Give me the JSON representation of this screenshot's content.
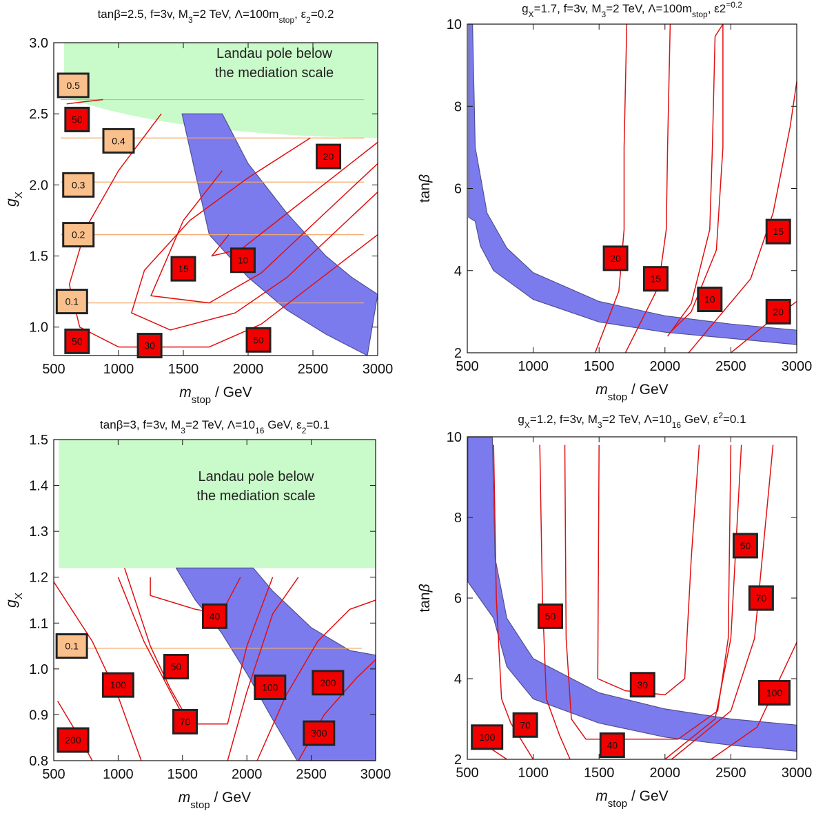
{
  "chart_data": [
    {
      "type": "contour",
      "title_parts": [
        "tanβ=2.5, f=3v, M",
        "3",
        "=2 TeV, Λ=100m",
        "stop",
        ", ε",
        "2",
        "=0.2"
      ],
      "xlabel": "m_stop / GeV",
      "ylabel": "g_X",
      "xlim": [
        500,
        3000
      ],
      "ylim": [
        0.8,
        3.0
      ],
      "x_ticks": [
        500,
        1000,
        1500,
        2000,
        2500,
        3000
      ],
      "y_ticks": [
        1.0,
        1.5,
        2.0,
        2.5,
        3.0
      ],
      "y_tick_labels": [
        "1.0",
        "1.5",
        "2.0",
        "2.5",
        "3.0"
      ],
      "landau_region": {
        "ybot_left": 2.62,
        "ybot_right": 2.33,
        "ytop": 3.0,
        "label": [
          "Landau pole below",
          "the mediation scale"
        ]
      },
      "band": {
        "outer": [
          [
            1490,
            2.5
          ],
          [
            1800,
            2.5
          ],
          [
            2000,
            2.15
          ],
          [
            2300,
            1.8
          ],
          [
            2600,
            1.5
          ],
          [
            2800,
            1.35
          ],
          [
            3000,
            1.23
          ]
        ],
        "inner": [
          [
            2920,
            0.8
          ],
          [
            2600,
            0.95
          ],
          [
            2300,
            1.12
          ],
          [
            2000,
            1.35
          ],
          [
            1700,
            1.65
          ],
          [
            1490,
            2.5
          ]
        ]
      },
      "hlines": [
        1.17,
        1.65,
        2.02,
        2.33,
        2.6
      ],
      "contours": [
        [
          [
            1330,
            2.5
          ],
          [
            1000,
            2.1
          ],
          [
            750,
            1.7
          ],
          [
            620,
            1.3
          ],
          [
            700,
            1.0
          ],
          [
            1000,
            0.86
          ],
          [
            1700,
            0.86
          ],
          [
            2100,
            1.02
          ],
          [
            2500,
            1.3
          ],
          [
            3000,
            1.65
          ]
        ],
        [
          [
            2480,
            2.33
          ],
          [
            2000,
            2.05
          ],
          [
            1550,
            1.75
          ],
          [
            1200,
            1.4
          ],
          [
            1100,
            1.1
          ],
          [
            1400,
            0.98
          ],
          [
            1900,
            1.1
          ],
          [
            2300,
            1.35
          ],
          [
            3000,
            1.95
          ]
        ],
        [
          [
            1800,
            2.1
          ],
          [
            1500,
            1.75
          ],
          [
            1250,
            1.22
          ],
          [
            1700,
            1.17
          ],
          [
            2100,
            1.38
          ],
          [
            3000,
            2.15
          ]
        ],
        [
          [
            1850,
            1.65
          ],
          [
            1720,
            1.5
          ],
          [
            1950,
            1.55
          ],
          [
            3000,
            2.3
          ]
        ],
        [
          [
            600,
            2.57
          ],
          [
            880,
            2.6
          ]
        ]
      ],
      "contour_labels": [
        {
          "text": "0.5",
          "x": 650,
          "y": 2.7,
          "kind": "orange"
        },
        {
          "text": "50",
          "x": 680,
          "y": 2.46,
          "kind": "red"
        },
        {
          "text": "0.4",
          "x": 1000,
          "y": 2.31,
          "kind": "orange"
        },
        {
          "text": "0.3",
          "x": 690,
          "y": 2.0,
          "kind": "orange"
        },
        {
          "text": "0.2",
          "x": 690,
          "y": 1.65,
          "kind": "orange"
        },
        {
          "text": "0.1",
          "x": 640,
          "y": 1.18,
          "kind": "orange"
        },
        {
          "text": "20",
          "x": 2620,
          "y": 2.2,
          "kind": "red"
        },
        {
          "text": "10",
          "x": 1960,
          "y": 1.47,
          "kind": "red"
        },
        {
          "text": "15",
          "x": 1500,
          "y": 1.41,
          "kind": "red"
        },
        {
          "text": "50",
          "x": 680,
          "y": 0.9,
          "kind": "red"
        },
        {
          "text": "30",
          "x": 1240,
          "y": 0.87,
          "kind": "red"
        },
        {
          "text": "50",
          "x": 2080,
          "y": 0.91,
          "kind": "red"
        }
      ]
    },
    {
      "type": "contour",
      "title_parts": [
        "g",
        "X",
        "=1.7, f=3v, M",
        "3",
        "=2 TeV, Λ=100m",
        "stop",
        ", ε",
        "2",
        "=0.2"
      ],
      "xlabel": "m_stop / GeV",
      "ylabel": "tanβ",
      "xlim": [
        500,
        3000
      ],
      "ylim": [
        2,
        10
      ],
      "x_ticks": [
        500,
        1000,
        1500,
        2000,
        2500,
        3000
      ],
      "y_ticks": [
        2,
        4,
        6,
        8,
        10
      ],
      "y_tick_labels": [
        "2",
        "4",
        "6",
        "8",
        "10"
      ],
      "band": {
        "outer": [
          [
            540,
            10
          ],
          [
            560,
            7
          ],
          [
            650,
            5.4
          ],
          [
            800,
            4.55
          ],
          [
            1000,
            3.95
          ],
          [
            1500,
            3.25
          ],
          [
            2000,
            2.9
          ],
          [
            2500,
            2.7
          ],
          [
            3000,
            2.55
          ]
        ],
        "inner": [
          [
            3000,
            2.2
          ],
          [
            2500,
            2.35
          ],
          [
            2000,
            2.5
          ],
          [
            1500,
            2.75
          ],
          [
            1000,
            3.3
          ],
          [
            700,
            4.0
          ],
          [
            600,
            4.6
          ],
          [
            560,
            5.2
          ],
          [
            510,
            5.3
          ],
          [
            510,
            10
          ]
        ]
      },
      "contours": [
        [
          [
            1470,
            2.0
          ],
          [
            1650,
            3.5
          ],
          [
            1690,
            5
          ],
          [
            1690,
            7
          ],
          [
            1710,
            10
          ]
        ],
        [
          [
            1700,
            2.0
          ],
          [
            1950,
            3.6
          ],
          [
            2010,
            5
          ],
          [
            2020,
            7
          ],
          [
            2040,
            10
          ]
        ],
        [
          [
            2020,
            2.4
          ],
          [
            2200,
            3.2
          ],
          [
            2340,
            5
          ],
          [
            2360,
            7
          ],
          [
            2380,
            9.7
          ],
          [
            2440,
            10
          ],
          [
            2440,
            7
          ],
          [
            2390,
            4.5
          ],
          [
            2200,
            3.0
          ],
          [
            2040,
            2.5
          ]
        ],
        [
          [
            2180,
            2.0
          ],
          [
            2650,
            3.8
          ],
          [
            2820,
            5.4
          ],
          [
            2950,
            7.5
          ],
          [
            3000,
            8.6
          ]
        ],
        [
          [
            2500,
            2.0
          ],
          [
            2750,
            2.65
          ],
          [
            3000,
            3.25
          ]
        ]
      ],
      "contour_labels": [
        {
          "text": "20",
          "x": 1625,
          "y": 4.3,
          "kind": "red"
        },
        {
          "text": "15",
          "x": 1930,
          "y": 3.8,
          "kind": "red"
        },
        {
          "text": "10",
          "x": 2340,
          "y": 3.3,
          "kind": "red"
        },
        {
          "text": "15",
          "x": 2860,
          "y": 4.95,
          "kind": "red"
        },
        {
          "text": "20",
          "x": 2860,
          "y": 3.0,
          "kind": "red"
        }
      ]
    },
    {
      "type": "contour",
      "title_parts": [
        "tanβ=3, f=3v, M",
        "3",
        "=2 TeV, Λ=10",
        "16",
        " GeV, ε",
        "2",
        "=0.1"
      ],
      "xlabel": "m_stop / GeV",
      "ylabel": "g_X",
      "xlim": [
        500,
        3000
      ],
      "ylim": [
        0.8,
        1.5
      ],
      "x_ticks": [
        500,
        1000,
        1500,
        2000,
        2500,
        3000
      ],
      "y_ticks": [
        0.8,
        0.9,
        1.0,
        1.1,
        1.2,
        1.3,
        1.4,
        1.5
      ],
      "y_tick_labels": [
        "0.8",
        "0.9",
        "1.0",
        "1.1",
        "1.2",
        "1.3",
        "1.4",
        "1.5"
      ],
      "landau_region": {
        "ybot_left": 1.22,
        "ybot_right": 1.22,
        "ytop": 1.5,
        "label": [
          "Landau pole below",
          "the mediation scale"
        ]
      },
      "band": {
        "outer": [
          [
            1450,
            1.22
          ],
          [
            2050,
            1.22
          ],
          [
            2200,
            1.17
          ],
          [
            2500,
            1.09
          ],
          [
            2800,
            1.04
          ],
          [
            3000,
            1.03
          ]
        ],
        "inner": [
          [
            3000,
            0.8
          ],
          [
            2390,
            0.8
          ],
          [
            2200,
            0.89
          ],
          [
            2000,
            0.99
          ],
          [
            1800,
            1.08
          ],
          [
            1600,
            1.15
          ],
          [
            1450,
            1.22
          ]
        ]
      },
      "hlines": [
        1.045
      ],
      "contours": [
        [
          [
            500,
            1.19
          ],
          [
            800,
            1.06
          ],
          [
            1000,
            0.94
          ],
          [
            1180,
            0.8
          ]
        ],
        [
          [
            1000,
            1.2
          ],
          [
            1200,
            1.06
          ],
          [
            1500,
            0.9
          ],
          [
            1550,
            0.88
          ],
          [
            1850,
            0.88
          ],
          [
            2000,
            1.05
          ],
          [
            2200,
            1.2
          ]
        ],
        [
          [
            1250,
            1.2
          ],
          [
            1250,
            1.16
          ],
          [
            1600,
            1.13
          ],
          [
            1800,
            1.12
          ],
          [
            1950,
            1.2
          ]
        ],
        [
          [
            1850,
            0.8
          ],
          [
            2000,
            0.95
          ],
          [
            2200,
            1.12
          ],
          [
            2400,
            1.2
          ]
        ],
        [
          [
            2080,
            0.8
          ],
          [
            2300,
            0.94
          ],
          [
            2550,
            1.06
          ],
          [
            2800,
            1.13
          ],
          [
            3000,
            1.15
          ]
        ],
        [
          [
            2400,
            0.8
          ],
          [
            2600,
            0.9
          ],
          [
            2850,
            0.98
          ],
          [
            3000,
            1.02
          ]
        ],
        [
          [
            530,
            0.93
          ],
          [
            680,
            0.86
          ],
          [
            800,
            0.8
          ]
        ],
        [
          [
            1050,
            1.22
          ],
          [
            1250,
            1.05
          ],
          [
            1400,
            0.96
          ],
          [
            1520,
            0.9
          ]
        ]
      ],
      "contour_labels": [
        {
          "text": "0.1",
          "x": 640,
          "y": 1.05,
          "kind": "orange"
        },
        {
          "text": "40",
          "x": 1750,
          "y": 1.115,
          "kind": "red"
        },
        {
          "text": "100",
          "x": 1000,
          "y": 0.965,
          "kind": "red"
        },
        {
          "text": "50",
          "x": 1450,
          "y": 1.005,
          "kind": "red"
        },
        {
          "text": "100",
          "x": 2180,
          "y": 0.96,
          "kind": "red"
        },
        {
          "text": "200",
          "x": 2630,
          "y": 0.97,
          "kind": "red"
        },
        {
          "text": "70",
          "x": 1520,
          "y": 0.885,
          "kind": "red"
        },
        {
          "text": "300",
          "x": 2560,
          "y": 0.86,
          "kind": "red"
        },
        {
          "text": "200",
          "x": 650,
          "y": 0.845,
          "kind": "red"
        }
      ]
    },
    {
      "type": "contour",
      "title_parts": [
        "g",
        "X",
        "=1.2, f=3v, M",
        "3",
        "=2 TeV, Λ=10",
        "16",
        " GeV, ε",
        "2",
        "=0.1"
      ],
      "xlabel": "m_stop / GeV",
      "ylabel": "tanβ",
      "xlim": [
        500,
        3000
      ],
      "ylim": [
        2,
        10
      ],
      "x_ticks": [
        500,
        1000,
        1500,
        2000,
        2500,
        3000
      ],
      "y_ticks": [
        2,
        4,
        6,
        8,
        10
      ],
      "y_tick_labels": [
        "2",
        "4",
        "6",
        "8",
        "10"
      ],
      "band": {
        "outer": [
          [
            690,
            10
          ],
          [
            710,
            7
          ],
          [
            800,
            5.5
          ],
          [
            1000,
            4.5
          ],
          [
            1500,
            3.65
          ],
          [
            2000,
            3.25
          ],
          [
            2500,
            3.0
          ],
          [
            3000,
            2.85
          ]
        ],
        "inner": [
          [
            3000,
            2.2
          ],
          [
            2500,
            2.35
          ],
          [
            2000,
            2.55
          ],
          [
            1500,
            2.9
          ],
          [
            1000,
            3.5
          ],
          [
            800,
            4.3
          ],
          [
            700,
            5.5
          ],
          [
            505,
            6.4
          ],
          [
            505,
            10
          ]
        ]
      },
      "contours": [
        [
          [
            570,
            2.5
          ],
          [
            800,
            2.0
          ]
        ],
        [
          [
            700,
            9.8
          ],
          [
            720,
            6
          ],
          [
            760,
            3.5
          ],
          [
            830,
            2.9
          ],
          [
            1000,
            2.0
          ]
        ],
        [
          [
            1050,
            9.8
          ],
          [
            1070,
            6
          ],
          [
            1100,
            3.5
          ],
          [
            1200,
            2.6
          ],
          [
            1280,
            2.0
          ]
        ],
        [
          [
            1240,
            9.8
          ],
          [
            1250,
            5
          ],
          [
            1290,
            3.0
          ],
          [
            1400,
            2.5
          ],
          [
            2100,
            2.5
          ],
          [
            2400,
            3.2
          ],
          [
            2480,
            5
          ],
          [
            2500,
            9.8
          ]
        ],
        [
          [
            1500,
            9.8
          ],
          [
            1490,
            4.0
          ],
          [
            1700,
            3.7
          ],
          [
            2000,
            3.6
          ],
          [
            2150,
            4.0
          ],
          [
            2200,
            7
          ],
          [
            2260,
            9.8
          ]
        ],
        [
          [
            2000,
            2.0
          ],
          [
            2380,
            3.0
          ],
          [
            2500,
            5
          ],
          [
            2580,
            9.8
          ]
        ],
        [
          [
            2050,
            2.0
          ],
          [
            2500,
            3.2
          ],
          [
            2680,
            5
          ],
          [
            2820,
            9.8
          ]
        ],
        [
          [
            2350,
            2.0
          ],
          [
            2700,
            2.8
          ],
          [
            3000,
            4.9
          ]
        ]
      ],
      "contour_labels": [
        {
          "text": "50",
          "x": 2610,
          "y": 7.3,
          "kind": "red"
        },
        {
          "text": "50",
          "x": 1130,
          "y": 5.55,
          "kind": "red"
        },
        {
          "text": "70",
          "x": 2730,
          "y": 6.0,
          "kind": "red"
        },
        {
          "text": "30",
          "x": 1830,
          "y": 3.85,
          "kind": "red"
        },
        {
          "text": "100",
          "x": 2830,
          "y": 3.65,
          "kind": "red"
        },
        {
          "text": "70",
          "x": 940,
          "y": 2.85,
          "kind": "red"
        },
        {
          "text": "100",
          "x": 650,
          "y": 2.55,
          "kind": "red"
        },
        {
          "text": "40",
          "x": 1600,
          "y": 2.35,
          "kind": "red"
        }
      ]
    }
  ]
}
